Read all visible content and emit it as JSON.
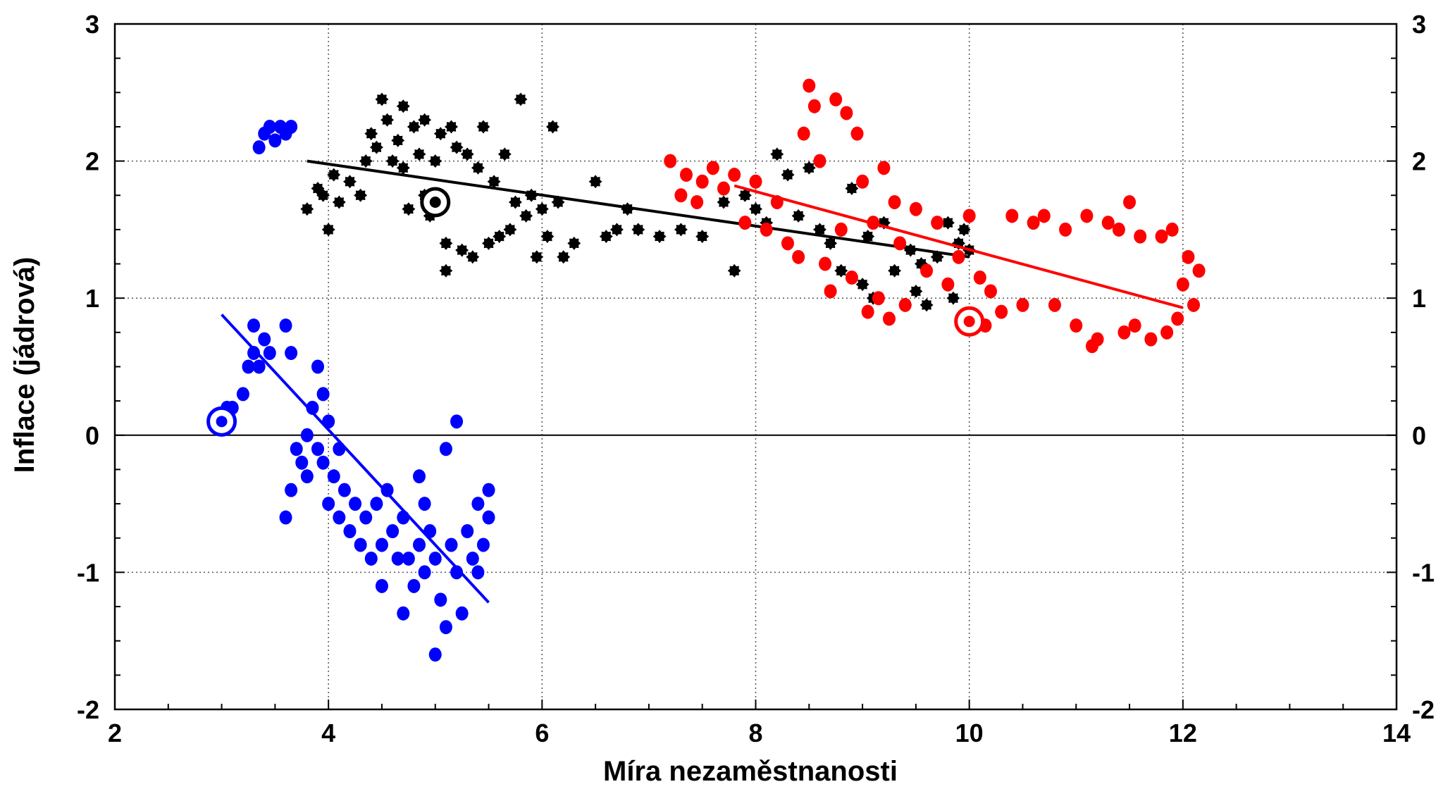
{
  "chart_data": {
    "type": "scatter",
    "title": "",
    "xlabel": "Míra nezaměstnanosti",
    "ylabel": "Inflace (jádrová)",
    "xlim": [
      2,
      14
    ],
    "ylim": [
      -2,
      3
    ],
    "x_ticks": [
      2,
      4,
      6,
      8,
      10,
      12,
      14
    ],
    "y_ticks": [
      -2,
      -1,
      0,
      1,
      2,
      3
    ],
    "grid": true,
    "legend": "none",
    "zero_line": true,
    "series": [
      {
        "color": "#0000ff",
        "marker": "dot",
        "points": [
          [
            3.0,
            0.1
          ],
          [
            3.05,
            0.2
          ],
          [
            3.1,
            0.2
          ],
          [
            3.2,
            0.3
          ],
          [
            3.25,
            0.5
          ],
          [
            3.3,
            0.6
          ],
          [
            3.3,
            0.8
          ],
          [
            3.35,
            0.5
          ],
          [
            3.4,
            0.7
          ],
          [
            3.45,
            0.6
          ],
          [
            3.35,
            2.1
          ],
          [
            3.4,
            2.2
          ],
          [
            3.45,
            2.25
          ],
          [
            3.5,
            2.15
          ],
          [
            3.55,
            2.25
          ],
          [
            3.6,
            2.2
          ],
          [
            3.65,
            2.25
          ],
          [
            3.6,
            0.8
          ],
          [
            3.65,
            0.6
          ],
          [
            3.6,
            -0.6
          ],
          [
            3.65,
            -0.4
          ],
          [
            3.7,
            -0.1
          ],
          [
            3.75,
            -0.2
          ],
          [
            3.8,
            0.0
          ],
          [
            3.8,
            -0.3
          ],
          [
            3.85,
            0.2
          ],
          [
            3.9,
            -0.1
          ],
          [
            3.9,
            0.5
          ],
          [
            3.95,
            0.3
          ],
          [
            3.95,
            -0.2
          ],
          [
            4.0,
            0.1
          ],
          [
            4.0,
            -0.5
          ],
          [
            4.05,
            -0.3
          ],
          [
            4.1,
            -0.1
          ],
          [
            4.1,
            -0.6
          ],
          [
            4.15,
            -0.4
          ],
          [
            4.2,
            -0.7
          ],
          [
            4.25,
            -0.5
          ],
          [
            4.3,
            -0.8
          ],
          [
            4.35,
            -0.6
          ],
          [
            4.4,
            -0.9
          ],
          [
            4.45,
            -0.5
          ],
          [
            4.5,
            -0.8
          ],
          [
            4.5,
            -1.1
          ],
          [
            4.55,
            -0.4
          ],
          [
            4.6,
            -0.7
          ],
          [
            4.65,
            -0.9
          ],
          [
            4.7,
            -0.6
          ],
          [
            4.7,
            -1.3
          ],
          [
            4.75,
            -0.9
          ],
          [
            4.8,
            -1.1
          ],
          [
            4.85,
            -0.3
          ],
          [
            4.85,
            -0.8
          ],
          [
            4.9,
            -1.0
          ],
          [
            4.9,
            -0.5
          ],
          [
            4.95,
            -0.7
          ],
          [
            5.0,
            -0.9
          ],
          [
            5.0,
            -1.6
          ],
          [
            5.05,
            -1.2
          ],
          [
            5.1,
            -0.1
          ],
          [
            5.1,
            -1.4
          ],
          [
            5.15,
            -0.8
          ],
          [
            5.2,
            0.1
          ],
          [
            5.2,
            -1.0
          ],
          [
            5.25,
            -1.3
          ],
          [
            5.3,
            -0.7
          ],
          [
            5.35,
            -0.9
          ],
          [
            5.4,
            -0.5
          ],
          [
            5.4,
            -1.0
          ],
          [
            5.45,
            -0.8
          ],
          [
            5.5,
            -0.6
          ],
          [
            5.5,
            -0.4
          ]
        ],
        "trend": [
          [
            3.0,
            0.88
          ],
          [
            5.5,
            -1.22
          ]
        ],
        "highlight": [
          3.0,
          0.1
        ]
      },
      {
        "color": "#000000",
        "marker": "star",
        "points": [
          [
            3.8,
            1.65
          ],
          [
            3.9,
            1.8
          ],
          [
            3.95,
            1.75
          ],
          [
            4.0,
            1.5
          ],
          [
            4.05,
            1.9
          ],
          [
            4.1,
            1.7
          ],
          [
            4.2,
            1.85
          ],
          [
            4.3,
            1.75
          ],
          [
            4.35,
            2.0
          ],
          [
            4.4,
            2.2
          ],
          [
            4.45,
            2.1
          ],
          [
            4.5,
            2.45
          ],
          [
            4.55,
            2.3
          ],
          [
            4.6,
            2.0
          ],
          [
            4.65,
            2.15
          ],
          [
            4.7,
            1.95
          ],
          [
            4.7,
            2.4
          ],
          [
            4.75,
            1.65
          ],
          [
            4.8,
            2.25
          ],
          [
            4.85,
            2.05
          ],
          [
            4.9,
            1.75
          ],
          [
            4.9,
            2.3
          ],
          [
            4.95,
            1.6
          ],
          [
            5.0,
            2.0
          ],
          [
            5.05,
            2.2
          ],
          [
            5.1,
            1.4
          ],
          [
            5.1,
            1.2
          ],
          [
            5.15,
            2.25
          ],
          [
            5.2,
            2.1
          ],
          [
            5.25,
            1.35
          ],
          [
            5.3,
            2.05
          ],
          [
            5.35,
            1.3
          ],
          [
            5.4,
            1.95
          ],
          [
            5.45,
            2.25
          ],
          [
            5.5,
            1.4
          ],
          [
            5.55,
            1.85
          ],
          [
            5.6,
            1.45
          ],
          [
            5.65,
            2.05
          ],
          [
            5.7,
            1.5
          ],
          [
            5.75,
            1.7
          ],
          [
            5.8,
            2.45
          ],
          [
            5.85,
            1.6
          ],
          [
            5.9,
            1.75
          ],
          [
            5.95,
            1.3
          ],
          [
            6.0,
            1.65
          ],
          [
            6.05,
            1.45
          ],
          [
            6.1,
            2.25
          ],
          [
            6.15,
            1.7
          ],
          [
            6.2,
            1.3
          ],
          [
            6.3,
            1.4
          ],
          [
            6.5,
            1.85
          ],
          [
            6.6,
            1.45
          ],
          [
            6.7,
            1.5
          ],
          [
            6.8,
            1.65
          ],
          [
            6.9,
            1.5
          ],
          [
            7.1,
            1.45
          ],
          [
            7.3,
            1.5
          ],
          [
            7.5,
            1.45
          ],
          [
            7.7,
            1.7
          ],
          [
            7.8,
            1.2
          ],
          [
            7.9,
            1.75
          ],
          [
            8.0,
            1.65
          ],
          [
            8.1,
            1.55
          ],
          [
            8.2,
            2.05
          ],
          [
            8.3,
            1.9
          ],
          [
            8.4,
            1.6
          ],
          [
            8.5,
            1.95
          ],
          [
            8.6,
            1.5
          ],
          [
            8.7,
            1.4
          ],
          [
            8.8,
            1.2
          ],
          [
            8.9,
            1.8
          ],
          [
            9.0,
            1.1
          ],
          [
            9.05,
            1.45
          ],
          [
            9.1,
            1.0
          ],
          [
            9.2,
            1.55
          ],
          [
            9.3,
            1.2
          ],
          [
            9.4,
            0.95
          ],
          [
            9.45,
            1.35
          ],
          [
            9.5,
            1.05
          ],
          [
            9.55,
            1.25
          ],
          [
            9.6,
            0.95
          ],
          [
            9.7,
            1.3
          ],
          [
            9.8,
            1.55
          ],
          [
            9.85,
            1.0
          ],
          [
            9.9,
            1.4
          ],
          [
            9.95,
            1.5
          ],
          [
            10.0,
            1.35
          ]
        ],
        "trend": [
          [
            3.8,
            2.0
          ],
          [
            10.0,
            1.3
          ]
        ],
        "highlight": [
          5.0,
          1.7
        ]
      },
      {
        "color": "#ff0000",
        "marker": "dot",
        "points": [
          [
            7.2,
            2.0
          ],
          [
            7.3,
            1.75
          ],
          [
            7.35,
            1.9
          ],
          [
            7.45,
            1.7
          ],
          [
            7.5,
            1.85
          ],
          [
            7.6,
            1.95
          ],
          [
            7.7,
            1.8
          ],
          [
            7.8,
            1.9
          ],
          [
            7.9,
            1.55
          ],
          [
            8.0,
            1.85
          ],
          [
            8.1,
            1.5
          ],
          [
            8.2,
            1.7
          ],
          [
            8.3,
            1.4
          ],
          [
            8.4,
            1.3
          ],
          [
            8.45,
            2.2
          ],
          [
            8.5,
            2.55
          ],
          [
            8.55,
            2.4
          ],
          [
            8.6,
            2.0
          ],
          [
            8.65,
            1.25
          ],
          [
            8.7,
            1.05
          ],
          [
            8.75,
            2.45
          ],
          [
            8.8,
            1.5
          ],
          [
            8.85,
            2.35
          ],
          [
            8.9,
            1.15
          ],
          [
            8.95,
            2.2
          ],
          [
            9.0,
            1.85
          ],
          [
            9.05,
            0.9
          ],
          [
            9.1,
            1.55
          ],
          [
            9.15,
            1.0
          ],
          [
            9.2,
            1.95
          ],
          [
            9.25,
            0.85
          ],
          [
            9.3,
            1.7
          ],
          [
            9.35,
            1.4
          ],
          [
            9.4,
            0.95
          ],
          [
            9.5,
            1.65
          ],
          [
            9.6,
            1.2
          ],
          [
            9.7,
            1.55
          ],
          [
            9.8,
            1.1
          ],
          [
            9.9,
            1.3
          ],
          [
            10.0,
            1.6
          ],
          [
            10.05,
            0.85
          ],
          [
            10.1,
            1.15
          ],
          [
            10.15,
            0.8
          ],
          [
            10.2,
            1.05
          ],
          [
            10.3,
            0.9
          ],
          [
            10.4,
            1.6
          ],
          [
            10.5,
            0.95
          ],
          [
            10.6,
            1.55
          ],
          [
            10.7,
            1.6
          ],
          [
            10.8,
            0.95
          ],
          [
            10.9,
            1.5
          ],
          [
            11.0,
            0.8
          ],
          [
            11.1,
            1.6
          ],
          [
            11.15,
            0.65
          ],
          [
            11.2,
            0.7
          ],
          [
            11.3,
            1.55
          ],
          [
            11.4,
            1.5
          ],
          [
            11.45,
            0.75
          ],
          [
            11.5,
            1.7
          ],
          [
            11.55,
            0.8
          ],
          [
            11.6,
            1.45
          ],
          [
            11.7,
            0.7
          ],
          [
            11.8,
            1.45
          ],
          [
            11.85,
            0.75
          ],
          [
            11.9,
            1.5
          ],
          [
            11.95,
            0.85
          ],
          [
            12.0,
            1.1
          ],
          [
            12.05,
            1.3
          ],
          [
            12.1,
            0.95
          ],
          [
            12.15,
            1.2
          ]
        ],
        "trend": [
          [
            7.8,
            1.82
          ],
          [
            12.0,
            0.93
          ]
        ],
        "highlight": [
          10.0,
          0.83
        ]
      }
    ]
  }
}
